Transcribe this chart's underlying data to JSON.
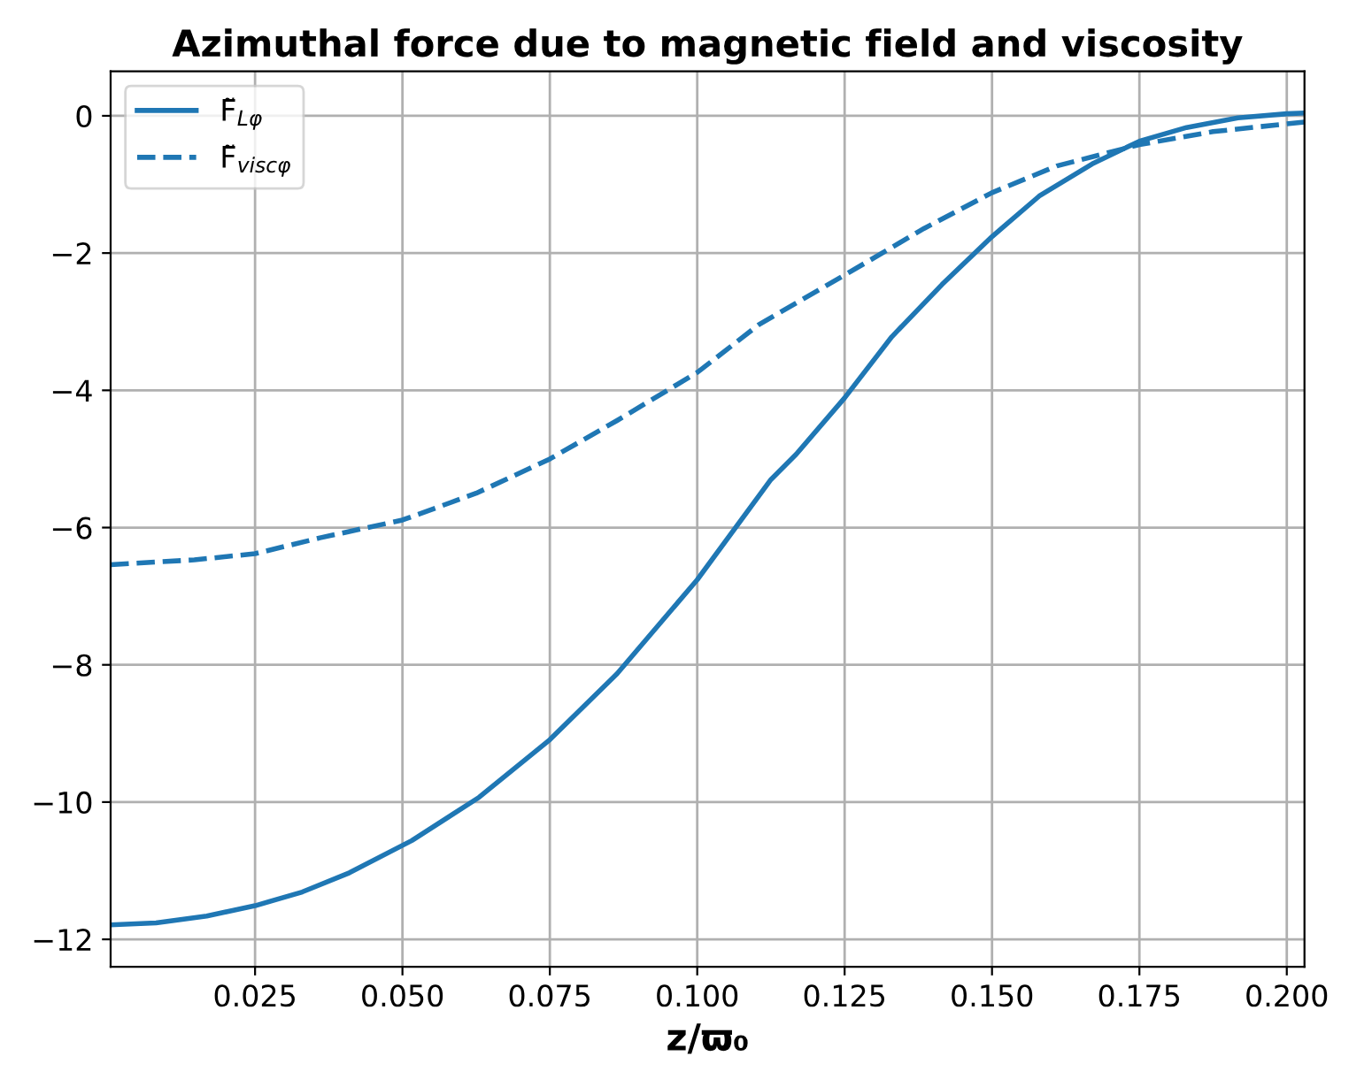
{
  "chart_data": {
    "type": "line",
    "title": "Azimuthal force due to magnetic field and viscosity",
    "xlabel": "z/ϖ₀",
    "xlim": [
      0.0005,
      0.203
    ],
    "xticks": [
      {
        "value": 0.025,
        "label": "0.025"
      },
      {
        "value": 0.05,
        "label": "0.050"
      },
      {
        "value": 0.075,
        "label": "0.075"
      },
      {
        "value": 0.1,
        "label": "0.100"
      },
      {
        "value": 0.125,
        "label": "0.125"
      },
      {
        "value": 0.15,
        "label": "0.150"
      },
      {
        "value": 0.175,
        "label": "0.175"
      },
      {
        "value": 0.2,
        "label": "0.200"
      }
    ],
    "ylim": [
      -12.4,
      0.65
    ],
    "yticks": [
      {
        "value": -12,
        "label": "−12"
      },
      {
        "value": -10,
        "label": "−10"
      },
      {
        "value": -8,
        "label": "−8"
      },
      {
        "value": -6,
        "label": "−6"
      },
      {
        "value": -4,
        "label": "−4"
      },
      {
        "value": -2,
        "label": "−2"
      },
      0
    ],
    "grid": true,
    "legend": "top left",
    "series": [
      {
        "name": "F̃$_{Lφ}$",
        "color": "#1f77b4",
        "line_style": "solid",
        "x": [
          0.0005,
          0.0082,
          0.0168,
          0.025,
          0.033,
          0.041,
          0.0516,
          0.063,
          0.075,
          0.0864,
          0.1,
          0.1125,
          0.1168,
          0.125,
          0.133,
          0.1415,
          0.15,
          0.158,
          0.167,
          0.175,
          0.183,
          0.1917,
          0.2,
          0.203
        ],
        "values": [
          -11.79,
          -11.76,
          -11.66,
          -11.51,
          -11.31,
          -11.03,
          -10.56,
          -9.93,
          -9.09,
          -8.13,
          -6.76,
          -5.3,
          -4.93,
          -4.11,
          -3.22,
          -2.46,
          -1.76,
          -1.17,
          -0.7,
          -0.37,
          -0.17,
          -0.03,
          0.03,
          0.04
        ]
      },
      {
        "name": "F̃$_{viscφ}$",
        "color": "#1f77b4",
        "line_style": "dashed",
        "x": [
          0.0005,
          0.0147,
          0.025,
          0.036,
          0.05,
          0.0625,
          0.075,
          0.0864,
          0.1,
          0.1105,
          0.125,
          0.1385,
          0.15,
          0.161,
          0.175,
          0.1875,
          0.203
        ],
        "values": [
          -6.54,
          -6.47,
          -6.38,
          -6.15,
          -5.89,
          -5.5,
          -5.0,
          -4.44,
          -3.74,
          -3.04,
          -2.32,
          -1.64,
          -1.12,
          -0.73,
          -0.42,
          -0.23,
          -0.09
        ]
      }
    ]
  }
}
